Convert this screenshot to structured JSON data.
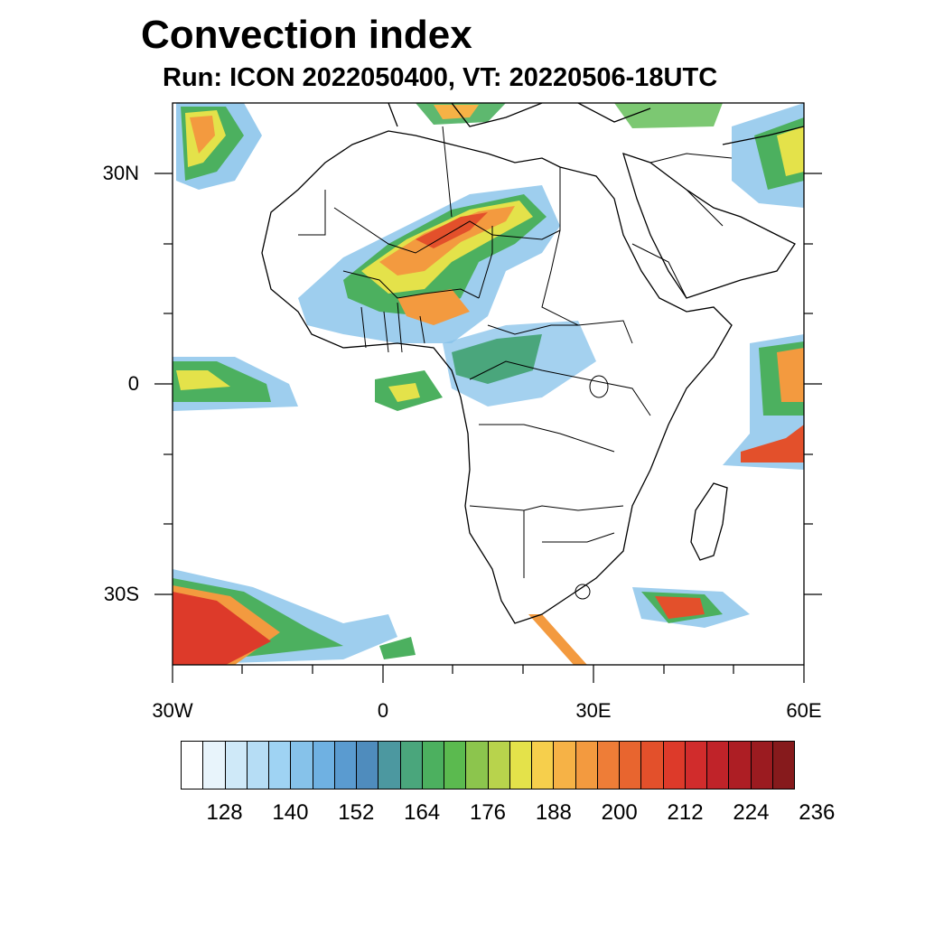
{
  "title": "Convection index",
  "subtitle": "Run: ICON 2022050400,  VT: 20220506-18UTC",
  "map": {
    "lon_range": [
      -30,
      60
    ],
    "lat_range": [
      -40,
      40
    ],
    "lat_ticks": [
      {
        "value": 30,
        "label": "30N"
      },
      {
        "value": 0,
        "label": "0"
      },
      {
        "value": -30,
        "label": "30S"
      }
    ],
    "lon_ticks": [
      {
        "value": -30,
        "label": "30W"
      },
      {
        "value": 0,
        "label": "0"
      },
      {
        "value": 30,
        "label": "30E"
      },
      {
        "value": 60,
        "label": "60E"
      }
    ]
  },
  "colorbar": {
    "colors": [
      "#ffffff",
      "#e8f4fb",
      "#cfe9f8",
      "#b6ddf5",
      "#9fd3f3",
      "#86c2ea",
      "#6fb1e2",
      "#5a9bd0",
      "#4f8cbd",
      "#4c98a0",
      "#4aa67c",
      "#4cb05f",
      "#5bba4f",
      "#8cc54d",
      "#b8d34c",
      "#e4e24a",
      "#f6cf4c",
      "#f6b246",
      "#f39a3f",
      "#ee7d37",
      "#e8652f",
      "#e3502b",
      "#dd3a2a",
      "#d12c2c",
      "#c02329",
      "#ad1e24",
      "#9b1b20",
      "#861a1c"
    ],
    "labels": [
      "128",
      "140",
      "152",
      "164",
      "176",
      "188",
      "200",
      "212",
      "224",
      "236"
    ]
  }
}
